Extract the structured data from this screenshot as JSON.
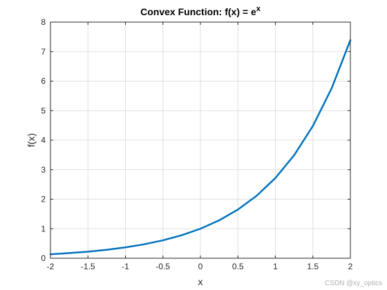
{
  "chart_data": {
    "type": "line",
    "title": "Convex Function: f(x) = e",
    "title_superscript": "x",
    "xlabel": "x",
    "ylabel": "f(x)",
    "xlim": [
      -2,
      2
    ],
    "ylim": [
      0,
      8
    ],
    "x_ticks": [
      -2,
      -1.5,
      -1,
      -0.5,
      0,
      0.5,
      1,
      1.5,
      2
    ],
    "x_tick_labels": [
      "-2",
      "-1.5",
      "-1",
      "-0.5",
      "0",
      "0.5",
      "1",
      "1.5",
      "2"
    ],
    "y_ticks": [
      0,
      1,
      2,
      3,
      4,
      5,
      6,
      7,
      8
    ],
    "y_tick_labels": [
      "0",
      "1",
      "2",
      "3",
      "4",
      "5",
      "6",
      "7",
      "8"
    ],
    "grid": true,
    "series": [
      {
        "color": "#0072BD",
        "x": [
          -2,
          -1.75,
          -1.5,
          -1.25,
          -1,
          -0.75,
          -0.5,
          -0.25,
          0,
          0.25,
          0.5,
          0.75,
          1,
          1.25,
          1.5,
          1.75,
          2
        ],
        "y": [
          0.135,
          0.174,
          0.223,
          0.287,
          0.368,
          0.472,
          0.607,
          0.779,
          1.0,
          1.284,
          1.649,
          2.117,
          2.718,
          3.49,
          4.482,
          5.755,
          7.389
        ]
      }
    ]
  },
  "watermark": "CSDN @xy_optics"
}
